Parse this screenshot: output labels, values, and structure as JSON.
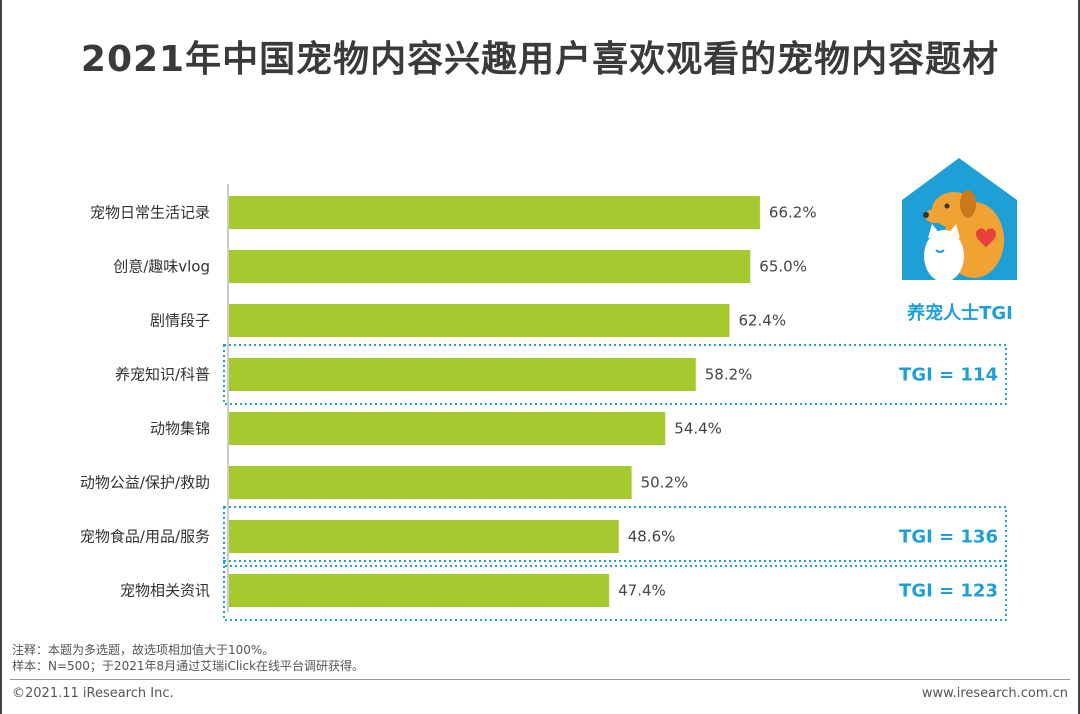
{
  "title": "2021年中国宠物内容兴趣用户喜欢观看的宠物内容题材",
  "chart_data": {
    "type": "bar",
    "orientation": "horizontal",
    "title": "2021年中国宠物内容兴趣用户喜欢观看的宠物内容题材",
    "categories": [
      "宠物日常生活记录",
      "创意/趣味vlog",
      "剧情段子",
      "养宠知识/科普",
      "动物集锦",
      "动物公益/保护/救助",
      "宠物食品/用品/服务",
      "宠物相关资讯"
    ],
    "values": [
      66.2,
      65.0,
      62.4,
      58.2,
      54.4,
      50.2,
      48.6,
      47.4
    ],
    "value_labels": [
      "66.2%",
      "65.0%",
      "62.4%",
      "58.2%",
      "54.4%",
      "50.2%",
      "48.6%",
      "47.4%"
    ],
    "tgi": [
      null,
      null,
      null,
      "TGI = 114",
      null,
      null,
      "TGI = 136",
      "TGI = 123"
    ],
    "unit": "%",
    "xlim": [
      0,
      100
    ],
    "grid": false,
    "bar_color": "#a5c92f",
    "highlight_color": "#1ea0d6"
  },
  "legend": {
    "icon": "dog-cat-house-icon",
    "label": "养宠人士TGI"
  },
  "footer": {
    "note": "注释：本题为多选题，故选项相加值大于100%。",
    "sample": "样本：N=500；于2021年8月通过艾瑞iClick在线平台调研获得。",
    "copyright": "©2021.11 iResearch Inc.",
    "website": "www.iresearch.com.cn"
  }
}
